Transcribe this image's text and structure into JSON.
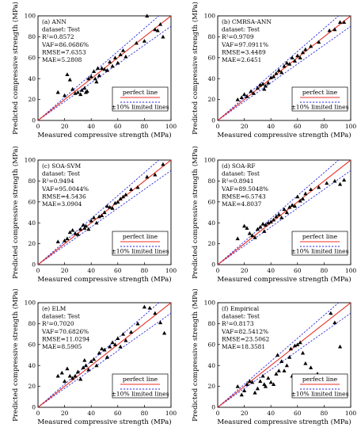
{
  "colors": {
    "perfect": "#e8322a",
    "limits": "#2a2ad8",
    "marker": "#000000",
    "frame": "#000000"
  },
  "chart_data": [
    {
      "type": "scatter",
      "panel": "(a) ANN",
      "dataset": "dataset: Test",
      "stats": [
        "R²=0.8572",
        "VAF=86.0686%",
        "RMSE=7.6353",
        "MAE=5.2808"
      ],
      "xlabel": "Measured compressive strength (MPa)",
      "ylabel": "Predicted compressive strength (MPa)",
      "xlim": [
        0,
        100
      ],
      "ylim": [
        0,
        100
      ],
      "xticks": [
        "0",
        "20",
        "40",
        "60",
        "80",
        "100"
      ],
      "yticks": [
        "0",
        "20",
        "40",
        "60",
        "80",
        "100"
      ],
      "legend": [
        "perfect line",
        "±10% limited lines"
      ],
      "legend_position": "bottom-right",
      "points": [
        [
          15,
          27
        ],
        [
          20,
          24
        ],
        [
          22,
          44
        ],
        [
          24,
          39
        ],
        [
          26,
          30
        ],
        [
          28,
          26
        ],
        [
          30,
          27
        ],
        [
          32,
          25
        ],
        [
          33,
          29
        ],
        [
          35,
          31
        ],
        [
          36,
          27
        ],
        [
          37,
          28
        ],
        [
          38,
          40
        ],
        [
          40,
          42
        ],
        [
          42,
          47
        ],
        [
          43,
          40
        ],
        [
          44,
          37
        ],
        [
          45,
          50
        ],
        [
          46,
          43
        ],
        [
          48,
          50
        ],
        [
          50,
          49
        ],
        [
          52,
          48
        ],
        [
          54,
          56
        ],
        [
          56,
          52
        ],
        [
          58,
          60
        ],
        [
          60,
          55
        ],
        [
          62,
          63
        ],
        [
          64,
          67
        ],
        [
          66,
          61
        ],
        [
          74,
          74
        ],
        [
          80,
          76
        ],
        [
          82,
          100
        ],
        [
          88,
          87
        ],
        [
          90,
          86
        ],
        [
          92,
          92
        ],
        [
          94,
          80
        ]
      ]
    },
    {
      "type": "scatter",
      "panel": "(b) CMRSA-ANN",
      "dataset": "dataset: Test",
      "stats": [
        "R²=0.9709",
        "VAF=97.0911%",
        "RMSE=3.4489",
        "MAE=2.6451"
      ],
      "xlabel": "Measured compressive strength (MPa)",
      "ylabel": "Predicted compressive strength (MPa)",
      "xlim": [
        0,
        100
      ],
      "ylim": [
        0,
        100
      ],
      "xticks": [
        "0",
        "20",
        "40",
        "60",
        "80",
        "100"
      ],
      "yticks": [
        "0",
        "20",
        "40",
        "60",
        "80",
        "100"
      ],
      "legend": [
        "perfect line",
        "±10% limited lines"
      ],
      "legend_position": "bottom-right",
      "points": [
        [
          15,
          20
        ],
        [
          18,
          22
        ],
        [
          20,
          25
        ],
        [
          22,
          23
        ],
        [
          25,
          28
        ],
        [
          27,
          26
        ],
        [
          30,
          31
        ],
        [
          32,
          34
        ],
        [
          34,
          35
        ],
        [
          35,
          30
        ],
        [
          36,
          33
        ],
        [
          38,
          36
        ],
        [
          40,
          41
        ],
        [
          42,
          42
        ],
        [
          44,
          45
        ],
        [
          46,
          48
        ],
        [
          48,
          46
        ],
        [
          50,
          52
        ],
        [
          52,
          55
        ],
        [
          54,
          54
        ],
        [
          56,
          60
        ],
        [
          58,
          57
        ],
        [
          60,
          62
        ],
        [
          62,
          60
        ],
        [
          64,
          65
        ],
        [
          66,
          68
        ],
        [
          70,
          71
        ],
        [
          76,
          75
        ],
        [
          84,
          86
        ],
        [
          88,
          87
        ],
        [
          92,
          94
        ],
        [
          95,
          94
        ]
      ]
    },
    {
      "type": "scatter",
      "panel": "(c) SOA-SVM",
      "dataset": "dataset: Test",
      "stats": [
        "R²=0.9494",
        "VAF=95.0044%",
        "RMSE=4.5436",
        "MAE=3.0904"
      ],
      "xlabel": "Measured compressive strength (MPa)",
      "ylabel": "Predicted compressive strength (MPa)",
      "xlim": [
        0,
        100
      ],
      "ylim": [
        0,
        100
      ],
      "xticks": [
        "0",
        "20",
        "40",
        "60",
        "80",
        "100"
      ],
      "yticks": [
        "0",
        "20",
        "40",
        "60",
        "80",
        "100"
      ],
      "legend": [
        "perfect line",
        "±10% limited lines"
      ],
      "legend_position": "bottom-right",
      "points": [
        [
          15,
          22
        ],
        [
          20,
          23
        ],
        [
          22,
          25
        ],
        [
          24,
          31
        ],
        [
          26,
          33
        ],
        [
          28,
          30
        ],
        [
          30,
          29
        ],
        [
          32,
          34
        ],
        [
          34,
          38
        ],
        [
          35,
          35
        ],
        [
          36,
          37
        ],
        [
          38,
          34
        ],
        [
          40,
          42
        ],
        [
          42,
          45
        ],
        [
          44,
          40
        ],
        [
          46,
          46
        ],
        [
          48,
          47
        ],
        [
          50,
          50
        ],
        [
          52,
          56
        ],
        [
          54,
          55
        ],
        [
          56,
          54
        ],
        [
          58,
          59
        ],
        [
          60,
          60
        ],
        [
          62,
          63
        ],
        [
          64,
          65
        ],
        [
          66,
          67
        ],
        [
          70,
          72
        ],
        [
          75,
          74
        ],
        [
          82,
          84
        ],
        [
          88,
          86
        ],
        [
          94,
          96
        ]
      ]
    },
    {
      "type": "scatter",
      "panel": "(d) SOA-RF",
      "dataset": "dataset: Test",
      "stats": [
        "R²=0.8941",
        "VAF=89.5048%",
        "RMSE=6.5743",
        "MAE=4.8037"
      ],
      "xlabel": "Measured compressive strength (MPa)",
      "ylabel": "Predicted compressive strength (MPa)",
      "xlim": [
        0,
        100
      ],
      "ylim": [
        0,
        100
      ],
      "xticks": [
        "0",
        "20",
        "40",
        "60",
        "80",
        "100"
      ],
      "yticks": [
        "0",
        "20",
        "40",
        "60",
        "80",
        "100"
      ],
      "legend": [
        "perfect line",
        "±10% limited lines"
      ],
      "legend_position": "bottom-right",
      "points": [
        [
          15,
          25
        ],
        [
          20,
          37
        ],
        [
          22,
          35
        ],
        [
          24,
          30
        ],
        [
          26,
          28
        ],
        [
          28,
          26
        ],
        [
          30,
          34
        ],
        [
          32,
          36
        ],
        [
          34,
          39
        ],
        [
          35,
          32
        ],
        [
          36,
          38
        ],
        [
          38,
          40
        ],
        [
          40,
          41
        ],
        [
          42,
          43
        ],
        [
          44,
          46
        ],
        [
          46,
          48
        ],
        [
          48,
          45
        ],
        [
          50,
          53
        ],
        [
          52,
          50
        ],
        [
          54,
          55
        ],
        [
          56,
          57
        ],
        [
          58,
          56
        ],
        [
          60,
          65
        ],
        [
          62,
          61
        ],
        [
          64,
          63
        ],
        [
          66,
          68
        ],
        [
          70,
          72
        ],
        [
          76,
          74
        ],
        [
          82,
          78
        ],
        [
          88,
          80
        ],
        [
          92,
          77
        ],
        [
          95,
          81
        ]
      ]
    },
    {
      "type": "scatter",
      "panel": "(e) ELM",
      "dataset": "dataset: Test",
      "stats": [
        "R²=0.7020",
        "VAF=70.6826%",
        "RMSE=11.0294",
        "MAE=8.5905"
      ],
      "xlabel": "Measured compressive strength (MPa)",
      "ylabel": "Predicted compressive strength (MPa)",
      "xlim": [
        0,
        100
      ],
      "ylim": [
        0,
        100
      ],
      "xticks": [
        "0",
        "20",
        "40",
        "60",
        "80",
        "100"
      ],
      "yticks": [
        "0",
        "20",
        "40",
        "60",
        "80",
        "100"
      ],
      "legend": [
        "perfect line",
        "±10% limited lines"
      ],
      "legend_position": "bottom-right",
      "points": [
        [
          15,
          30
        ],
        [
          18,
          33
        ],
        [
          20,
          25
        ],
        [
          22,
          37
        ],
        [
          24,
          30
        ],
        [
          26,
          28
        ],
        [
          28,
          30
        ],
        [
          30,
          34
        ],
        [
          32,
          27
        ],
        [
          34,
          38
        ],
        [
          35,
          45
        ],
        [
          36,
          40
        ],
        [
          38,
          36
        ],
        [
          40,
          44
        ],
        [
          42,
          46
        ],
        [
          44,
          40
        ],
        [
          46,
          52
        ],
        [
          48,
          56
        ],
        [
          50,
          55
        ],
        [
          52,
          48
        ],
        [
          54,
          58
        ],
        [
          56,
          62
        ],
        [
          58,
          60
        ],
        [
          60,
          66
        ],
        [
          62,
          58
        ],
        [
          64,
          70
        ],
        [
          66,
          64
        ],
        [
          70,
          72
        ],
        [
          75,
          80
        ],
        [
          80,
          96
        ],
        [
          84,
          95
        ],
        [
          88,
          90
        ],
        [
          92,
          81
        ],
        [
          95,
          71
        ]
      ]
    },
    {
      "type": "scatter",
      "panel": "(f) Empirical",
      "dataset": "dataset: Test",
      "stats": [
        "R²=0.8173",
        "VAF=82.5412%",
        "RMSE=23.5062",
        "MAE=18.3581"
      ],
      "xlabel": "Measured compressive strength (MPa)",
      "ylabel": "Predicted compressive strength (MPa)",
      "xlim": [
        0,
        100
      ],
      "ylim": [
        0,
        100
      ],
      "xticks": [
        "0",
        "20",
        "40",
        "60",
        "80",
        "100"
      ],
      "yticks": [
        "0",
        "20",
        "40",
        "60",
        "80",
        "100"
      ],
      "legend": [
        "perfect line",
        "±10% limited lines"
      ],
      "legend_position": "bottom-right",
      "points": [
        [
          15,
          20
        ],
        [
          18,
          12
        ],
        [
          20,
          16
        ],
        [
          22,
          22
        ],
        [
          24,
          25
        ],
        [
          26,
          24
        ],
        [
          28,
          14
        ],
        [
          30,
          18
        ],
        [
          32,
          25
        ],
        [
          34,
          30
        ],
        [
          35,
          22
        ],
        [
          36,
          20
        ],
        [
          38,
          28
        ],
        [
          40,
          24
        ],
        [
          42,
          22
        ],
        [
          44,
          32
        ],
        [
          45,
          50
        ],
        [
          46,
          35
        ],
        [
          48,
          44
        ],
        [
          50,
          35
        ],
        [
          52,
          40
        ],
        [
          54,
          48
        ],
        [
          55,
          56
        ],
        [
          56,
          30
        ],
        [
          58,
          59
        ],
        [
          60,
          60
        ],
        [
          62,
          62
        ],
        [
          64,
          52
        ],
        [
          66,
          42
        ],
        [
          70,
          38
        ],
        [
          75,
          32
        ],
        [
          80,
          30
        ],
        [
          85,
          90
        ],
        [
          88,
          81
        ],
        [
          92,
          58
        ]
      ]
    }
  ]
}
